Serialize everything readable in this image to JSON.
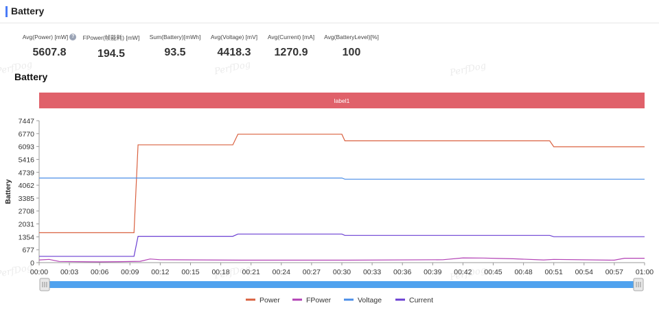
{
  "header": {
    "title": "Battery"
  },
  "stats": [
    {
      "label": "Avg(Power) [mW]",
      "value": "5607.8",
      "help": true
    },
    {
      "label": "FPower(帧能耗) [mW]",
      "value": "194.5"
    },
    {
      "label": "Sum(Battery)[mWh]",
      "value": "93.5"
    },
    {
      "label": "Avg(Voltage) [mV]",
      "value": "4418.3"
    },
    {
      "label": "Avg(Current) [mA]",
      "value": "1270.9"
    },
    {
      "label": "Avg(BatteryLevel)[%]",
      "value": "100"
    }
  ],
  "watermark_text": "PerfDog",
  "chart_section_title": "Battery",
  "chart_data": {
    "type": "line",
    "label_band": {
      "text": "label1",
      "color": "#e0616a"
    },
    "ylabel": "Battery",
    "yticks": [
      0,
      677,
      1354,
      2031,
      2708,
      3385,
      4062,
      4739,
      5416,
      6093,
      6770,
      7447
    ],
    "ylim": [
      0,
      7447
    ],
    "xlim_seconds": [
      0,
      60
    ],
    "xticks": [
      "00:00",
      "00:03",
      "00:06",
      "00:09",
      "00:12",
      "00:15",
      "00:18",
      "00:21",
      "00:24",
      "00:27",
      "00:30",
      "00:33",
      "00:36",
      "00:39",
      "00:42",
      "00:45",
      "00:48",
      "00:51",
      "00:54",
      "00:57",
      "01:00"
    ],
    "series": [
      {
        "name": "Power",
        "color": "#d9603f",
        "x": [
          0,
          9.4,
          9.8,
          19.2,
          19.7,
          30.0,
          30.3,
          50.6,
          51.0,
          60
        ],
        "y": [
          1570,
          1570,
          6180,
          6180,
          6740,
          6740,
          6390,
          6390,
          6080,
          6080
        ]
      },
      {
        "name": "FPower",
        "color": "#b241b5",
        "x": [
          0,
          1.0,
          2.0,
          6.0,
          8.0,
          10.0,
          11.0,
          12.0,
          20.0,
          30.0,
          40.0,
          42.0,
          44.0,
          45.5,
          47.0,
          50.0,
          51.0,
          57.0,
          58.0,
          60
        ],
        "y": [
          140,
          170,
          60,
          40,
          50,
          70,
          190,
          150,
          130,
          130,
          150,
          250,
          240,
          220,
          200,
          140,
          170,
          130,
          230,
          230
        ]
      },
      {
        "name": "Voltage",
        "color": "#4b8ee8",
        "x": [
          0,
          30.0,
          30.3,
          60
        ],
        "y": [
          4440,
          4440,
          4380,
          4380
        ]
      },
      {
        "name": "Current",
        "color": "#6a3fd2",
        "x": [
          0,
          9.4,
          9.8,
          19.2,
          19.7,
          30.0,
          30.3,
          50.6,
          51.0,
          60
        ],
        "y": [
          330,
          330,
          1380,
          1380,
          1500,
          1500,
          1430,
          1430,
          1360,
          1360
        ]
      }
    ],
    "grid": false,
    "legend_position": "bottom-center"
  }
}
